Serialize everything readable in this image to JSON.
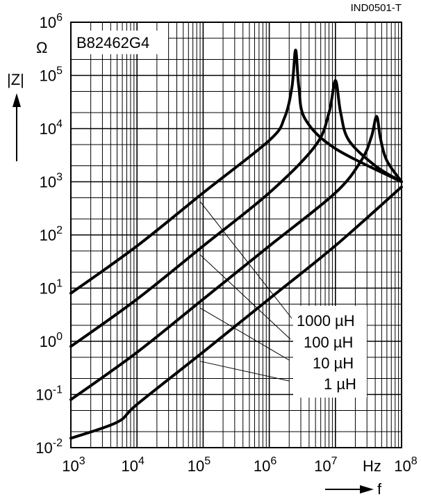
{
  "chart_data": {
    "type": "line",
    "doc_code": "IND0501-T",
    "part_number": "B82462G4",
    "ylabel": "|Z|",
    "y_unit": "Ω",
    "xlabel": "f",
    "x_unit": "Hz",
    "x_scale": "log",
    "y_scale": "log",
    "xlim": [
      1000,
      100000000
    ],
    "ylim": [
      0.01,
      1000000
    ],
    "x_ticks": [
      {
        "base": "10",
        "exp": "3"
      },
      {
        "base": "10",
        "exp": "4"
      },
      {
        "base": "10",
        "exp": "5"
      },
      {
        "base": "10",
        "exp": "6"
      },
      {
        "base": "10",
        "exp": "7"
      },
      {
        "base": "10",
        "exp": "8"
      }
    ],
    "y_ticks": [
      {
        "base": "10",
        "exp": "-2"
      },
      {
        "base": "10",
        "exp": "-1"
      },
      {
        "base": "10",
        "exp": "0"
      },
      {
        "base": "10",
        "exp": "1"
      },
      {
        "base": "10",
        "exp": "2"
      },
      {
        "base": "10",
        "exp": "3"
      },
      {
        "base": "10",
        "exp": "4"
      },
      {
        "base": "10",
        "exp": "5"
      },
      {
        "base": "10",
        "exp": "6"
      }
    ],
    "grid": true,
    "series": [
      {
        "name": "1000 µH",
        "points": [
          [
            1000,
            8
          ],
          [
            10000,
            62
          ],
          [
            100000,
            620
          ],
          [
            1000000,
            6000
          ],
          [
            1700000,
            16000
          ],
          [
            2200000,
            60000
          ],
          [
            2500000,
            300000
          ],
          [
            2800000,
            60000
          ],
          [
            3500000,
            15000
          ],
          [
            10000000,
            4200
          ],
          [
            100000000,
            1000
          ]
        ]
      },
      {
        "name": "100 µH",
        "points": [
          [
            1000,
            0.8
          ],
          [
            10000,
            6.2
          ],
          [
            100000,
            62
          ],
          [
            1000000,
            620
          ],
          [
            5000000,
            4800
          ],
          [
            8000000,
            20000
          ],
          [
            10000000,
            80000
          ],
          [
            12000000,
            20000
          ],
          [
            16000000,
            6000
          ],
          [
            40000000,
            2000
          ],
          [
            100000000,
            1000
          ]
        ]
      },
      {
        "name": "10 µH",
        "points": [
          [
            1000,
            0.08
          ],
          [
            10000,
            0.62
          ],
          [
            100000,
            6.2
          ],
          [
            1000000,
            62
          ],
          [
            10000000,
            620
          ],
          [
            25000000,
            2600
          ],
          [
            35000000,
            7000
          ],
          [
            42000000,
            17000
          ],
          [
            48000000,
            6500
          ],
          [
            60000000,
            2500
          ],
          [
            100000000,
            1000
          ]
        ]
      },
      {
        "name": "1 µH",
        "points": [
          [
            1000,
            0.015
          ],
          [
            5000,
            0.03
          ],
          [
            10000,
            0.065
          ],
          [
            100000,
            0.63
          ],
          [
            1000000,
            6.3
          ],
          [
            10000000,
            63
          ],
          [
            100000000,
            800
          ]
        ]
      }
    ]
  }
}
